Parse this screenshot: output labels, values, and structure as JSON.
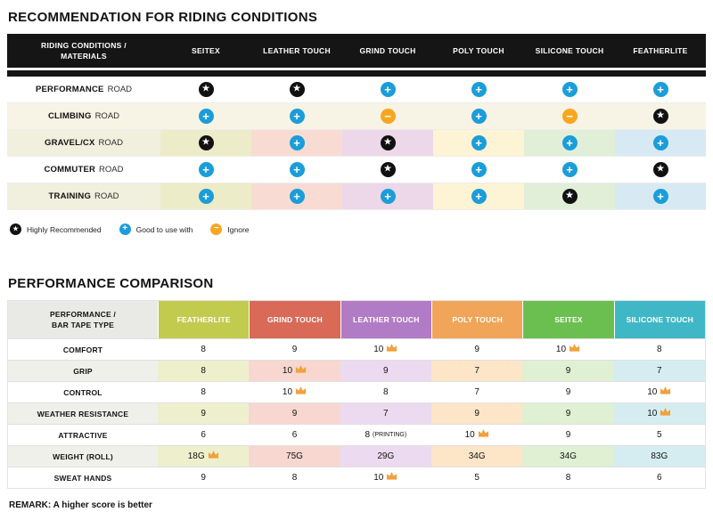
{
  "page": {
    "heading_riding": "RECOMMENDATION FOR RIDING CONDITIONS",
    "heading_performance": "PERFORMANCE COMPARISON",
    "remark": "REMARK: A higher score is better"
  },
  "colors": {
    "header_black": "#151515",
    "star_icon_bg": "#111111",
    "plus_icon_bg": "#1b9dd9",
    "minus_icon_bg": "#f6a722",
    "crown": "#f0a23c"
  },
  "riding_table": {
    "corner_label_line1": "RIDING CONDITIONS /",
    "corner_label_line2": "MATERIALS",
    "columns": [
      "SEITEX",
      "LEATHER TOUCH",
      "GRIND TOUCH",
      "POLY TOUCH",
      "SILICONE TOUCH",
      "FEATHERLITE"
    ],
    "column_pastels": [
      "#edecc9",
      "#f8dcd3",
      "#ecd8e9",
      "#fcf4d4",
      "#e1efd9",
      "#d7eaf4"
    ],
    "label_pastel": "#f1efdd",
    "cream": "#f7f4e5",
    "rows": [
      {
        "name": "PERFORMANCE",
        "type": "ROAD",
        "bg": "white",
        "cells": [
          "star",
          "star",
          "plus",
          "plus",
          "plus",
          "plus"
        ]
      },
      {
        "name": "CLIMBING",
        "type": "ROAD",
        "bg": "cream",
        "cells": [
          "plus",
          "plus",
          "minus",
          "plus",
          "minus",
          "star"
        ]
      },
      {
        "name": "GRAVEL/CX",
        "type": "ROAD",
        "bg": "pastel",
        "cells": [
          "star",
          "plus",
          "star",
          "plus",
          "plus",
          "plus"
        ]
      },
      {
        "name": "COMMUTER",
        "type": "ROAD",
        "bg": "white",
        "cells": [
          "plus",
          "plus",
          "star",
          "plus",
          "plus",
          "star"
        ]
      },
      {
        "name": "TRAINING",
        "type": "ROAD",
        "bg": "pastel",
        "cells": [
          "plus",
          "plus",
          "plus",
          "plus",
          "star",
          "plus"
        ]
      }
    ],
    "legend": [
      {
        "icon": "star",
        "label": "Highly Recommended"
      },
      {
        "icon": "plus",
        "label": "Good to use with"
      },
      {
        "icon": "minus",
        "label": "Ignore"
      }
    ]
  },
  "performance_table": {
    "corner_label_line1": "PERFORMANCE /",
    "corner_label_line2": "BAR TAPE TYPE",
    "label_pastel": "#f0f0eb",
    "columns": [
      {
        "name": "FEATHERLITE",
        "color": "#c2cb4e",
        "pastel": "#eef0cd"
      },
      {
        "name": "GRIND TOUCH",
        "color": "#d96a58",
        "pastel": "#f7d7cf"
      },
      {
        "name": "LEATHER TOUCH",
        "color": "#b17cc5",
        "pastel": "#ecdaf0"
      },
      {
        "name": "POLY TOUCH",
        "color": "#f0a558",
        "pastel": "#fde5c8"
      },
      {
        "name": "SEITEX",
        "color": "#6bbf50",
        "pastel": "#dff0d3"
      },
      {
        "name": "SILICONE TOUCH",
        "color": "#40b7c6",
        "pastel": "#d5edf1"
      }
    ],
    "rows": [
      {
        "label": "COMFORT",
        "shaded": false,
        "values": [
          {
            "text": "8"
          },
          {
            "text": "9"
          },
          {
            "text": "10",
            "crown": true
          },
          {
            "text": "9"
          },
          {
            "text": "10",
            "crown": true
          },
          {
            "text": "8"
          }
        ]
      },
      {
        "label": "GRIP",
        "shaded": true,
        "values": [
          {
            "text": "8"
          },
          {
            "text": "10",
            "crown": true
          },
          {
            "text": "9"
          },
          {
            "text": "7"
          },
          {
            "text": "9"
          },
          {
            "text": "7"
          }
        ]
      },
      {
        "label": "CONTROL",
        "shaded": false,
        "values": [
          {
            "text": "8"
          },
          {
            "text": "10",
            "crown": true
          },
          {
            "text": "8"
          },
          {
            "text": "7"
          },
          {
            "text": "9"
          },
          {
            "text": "10",
            "crown": true
          }
        ]
      },
      {
        "label": "WEATHER RESISTANCE",
        "shaded": true,
        "values": [
          {
            "text": "9"
          },
          {
            "text": "9"
          },
          {
            "text": "7"
          },
          {
            "text": "9"
          },
          {
            "text": "9"
          },
          {
            "text": "10",
            "crown": true
          }
        ]
      },
      {
        "label": "ATTRACTIVE",
        "shaded": false,
        "values": [
          {
            "text": "6"
          },
          {
            "text": "6"
          },
          {
            "text": "8",
            "note": "(PRINTING)"
          },
          {
            "text": "10",
            "crown": true
          },
          {
            "text": "9"
          },
          {
            "text": "5"
          }
        ]
      },
      {
        "label": "WEIGHT (ROLL)",
        "shaded": true,
        "values": [
          {
            "text": "18G",
            "crown": true
          },
          {
            "text": "75G"
          },
          {
            "text": "29G"
          },
          {
            "text": "34G"
          },
          {
            "text": "34G"
          },
          {
            "text": "83G"
          }
        ]
      },
      {
        "label": "SWEAT HANDS",
        "shaded": false,
        "values": [
          {
            "text": "9"
          },
          {
            "text": "8"
          },
          {
            "text": "10",
            "crown": true
          },
          {
            "text": "5"
          },
          {
            "text": "8"
          },
          {
            "text": "6"
          }
        ]
      }
    ]
  },
  "chart_data": [
    {
      "type": "table",
      "title": "RECOMMENDATION FOR RIDING CONDITIONS",
      "row_header": "RIDING CONDITIONS / MATERIALS",
      "columns": [
        "SEITEX",
        "LEATHER TOUCH",
        "GRIND TOUCH",
        "POLY TOUCH",
        "SILICONE TOUCH",
        "FEATHERLITE"
      ],
      "rows": [
        "PERFORMANCE ROAD",
        "CLIMBING ROAD",
        "GRAVEL/CX ROAD",
        "COMMUTER ROAD",
        "TRAINING ROAD"
      ],
      "values": [
        [
          "highly-recommended",
          "highly-recommended",
          "good-to-use-with",
          "good-to-use-with",
          "good-to-use-with",
          "good-to-use-with"
        ],
        [
          "good-to-use-with",
          "good-to-use-with",
          "ignore",
          "good-to-use-with",
          "ignore",
          "highly-recommended"
        ],
        [
          "highly-recommended",
          "good-to-use-with",
          "highly-recommended",
          "good-to-use-with",
          "good-to-use-with",
          "good-to-use-with"
        ],
        [
          "good-to-use-with",
          "good-to-use-with",
          "highly-recommended",
          "good-to-use-with",
          "good-to-use-with",
          "highly-recommended"
        ],
        [
          "good-to-use-with",
          "good-to-use-with",
          "good-to-use-with",
          "good-to-use-with",
          "highly-recommended",
          "good-to-use-with"
        ]
      ],
      "legend": [
        "Highly Recommended",
        "Good to use with",
        "Ignore"
      ]
    },
    {
      "type": "table",
      "title": "PERFORMANCE COMPARISON",
      "row_header": "PERFORMANCE / BAR TAPE TYPE",
      "columns": [
        "FEATHERLITE",
        "GRIND TOUCH",
        "LEATHER TOUCH",
        "POLY TOUCH",
        "SEITEX",
        "SILICONE TOUCH"
      ],
      "rows": [
        "COMFORT",
        "GRIP",
        "CONTROL",
        "WEATHER RESISTANCE",
        "ATTRACTIVE",
        "WEIGHT (ROLL)",
        "SWEAT HANDS"
      ],
      "values": [
        [
          "8",
          "9",
          "10",
          "9",
          "10",
          "8"
        ],
        [
          "8",
          "10",
          "9",
          "7",
          "9",
          "7"
        ],
        [
          "8",
          "10",
          "8",
          "7",
          "9",
          "10"
        ],
        [
          "9",
          "9",
          "7",
          "9",
          "9",
          "10"
        ],
        [
          "6",
          "6",
          "8 (PRINTING)",
          "10",
          "9",
          "5"
        ],
        [
          "18G",
          "75G",
          "29G",
          "34G",
          "34G",
          "83G"
        ],
        [
          "9",
          "8",
          "10",
          "5",
          "8",
          "6"
        ]
      ],
      "crown_marked": [
        [
          "LEATHER TOUCH",
          "SEITEX"
        ],
        [
          "GRIND TOUCH"
        ],
        [
          "GRIND TOUCH",
          "SILICONE TOUCH"
        ],
        [
          "SILICONE TOUCH"
        ],
        [
          "POLY TOUCH"
        ],
        [
          "FEATHERLITE"
        ],
        [
          "LEATHER TOUCH"
        ]
      ],
      "note": "REMARK: A higher score is better"
    }
  ]
}
